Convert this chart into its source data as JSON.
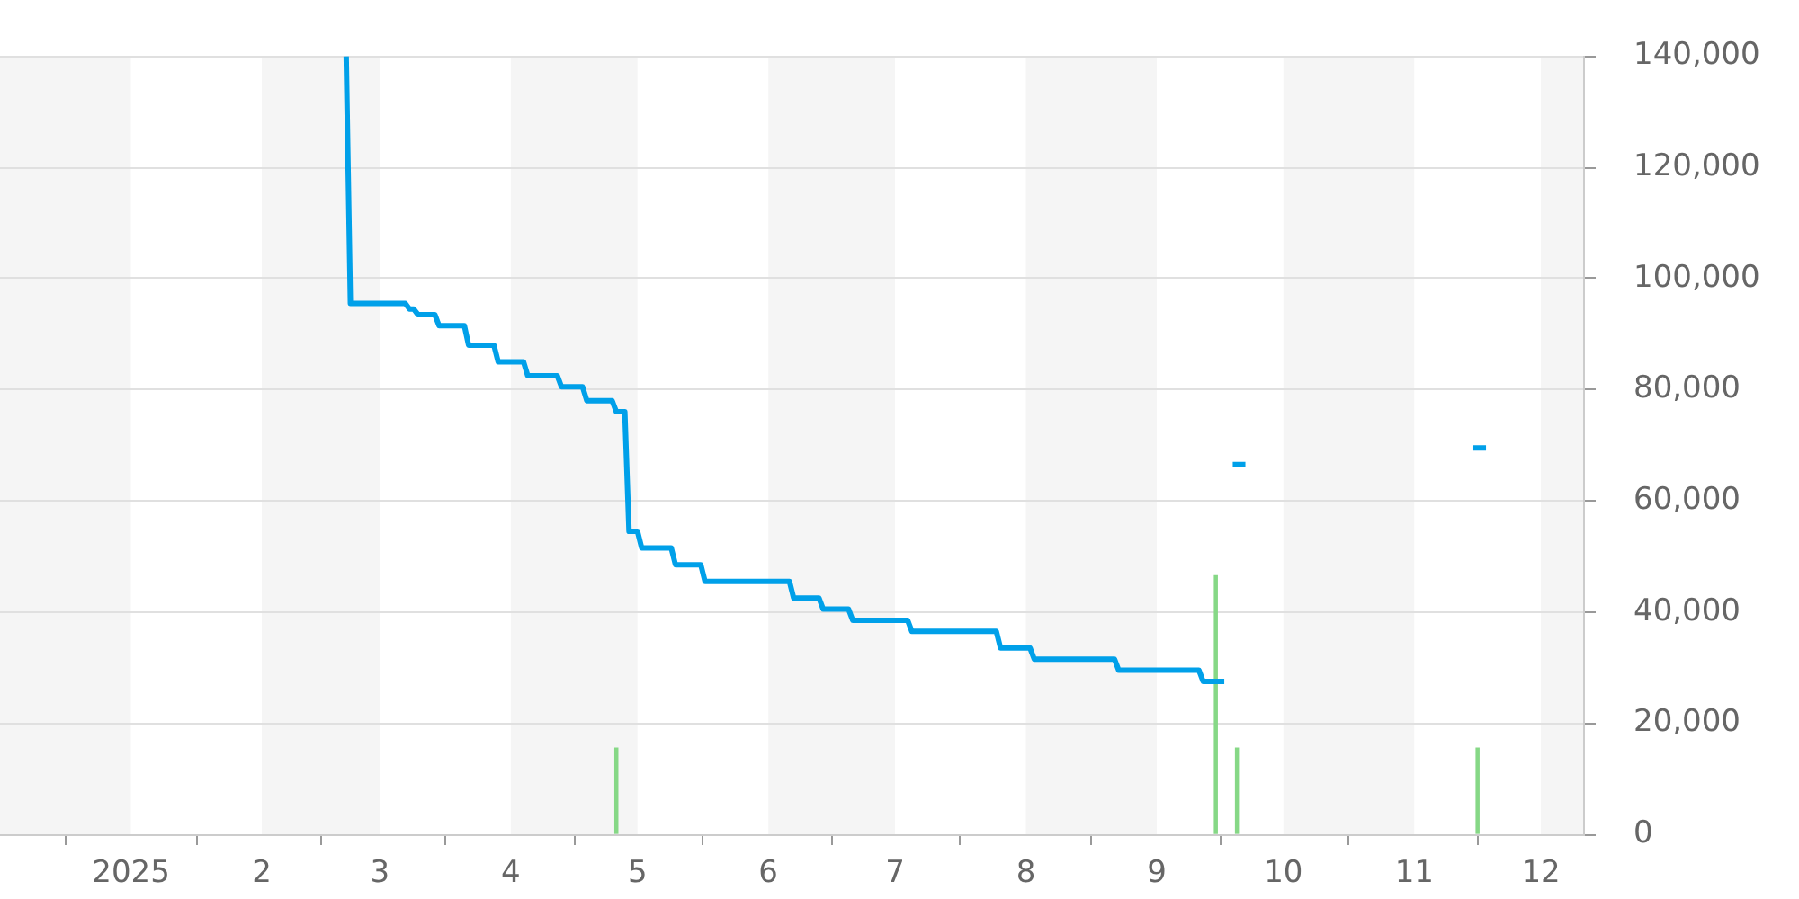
{
  "chart_data": {
    "type": "line",
    "series": [
      {
        "color": "#00a0e9",
        "x": [
          "2025-02-21",
          "2025-02-22",
          "2025-03-07",
          "2025-03-08",
          "2025-03-09",
          "2025-03-10",
          "2025-03-14",
          "2025-03-15",
          "2025-03-21",
          "2025-03-22",
          "2025-03-28",
          "2025-03-29",
          "2025-04-04",
          "2025-04-05",
          "2025-04-12",
          "2025-04-13",
          "2025-04-18",
          "2025-04-19",
          "2025-04-25",
          "2025-04-26",
          "2025-04-28",
          "2025-04-29",
          "2025-05-01",
          "2025-05-02",
          "2025-05-09",
          "2025-05-10",
          "2025-05-16",
          "2025-05-17",
          "2025-06-06",
          "2025-06-07",
          "2025-06-13",
          "2025-06-14",
          "2025-06-20",
          "2025-06-21",
          "2025-07-04",
          "2025-07-05",
          "2025-07-25",
          "2025-07-26",
          "2025-08-02",
          "2025-08-03",
          "2025-08-22",
          "2025-08-23",
          "2025-09-11",
          "2025-09-12",
          "2025-09-17",
          "2025-09-18",
          "2025-09-19",
          "2025-09-22",
          "2025-09-23",
          "2025-11-15",
          "2025-11-18"
        ],
        "values": [
          140000,
          95500,
          95500,
          94500,
          94500,
          93500,
          93500,
          91500,
          91500,
          88000,
          88000,
          85000,
          85000,
          82500,
          82500,
          80500,
          80500,
          78000,
          78000,
          76000,
          76000,
          54500,
          54500,
          51500,
          51500,
          48500,
          48500,
          45500,
          45500,
          42500,
          42500,
          40500,
          40500,
          38500,
          38500,
          36500,
          36500,
          33500,
          33500,
          31500,
          31500,
          29500,
          29500,
          27500,
          27500,
          null,
          66500,
          66500,
          null,
          69500,
          69500
        ]
      },
      {
        "type": "bar",
        "color": "#86d886",
        "x": [
          "2025-04-26",
          "2025-09-15",
          "2025-09-20",
          "2025-11-16"
        ],
        "values": [
          15500,
          46500,
          15500,
          15500
        ]
      }
    ],
    "xlim": [
      "2024-12-01",
      "2025-12-11"
    ],
    "xticks": [
      {
        "value": "2025-01-01",
        "label": "2025"
      },
      {
        "value": "2025-02-01",
        "label": "2"
      },
      {
        "value": "2025-03-01",
        "label": "3"
      },
      {
        "value": "2025-04-01",
        "label": "4"
      },
      {
        "value": "2025-05-01",
        "label": "5"
      },
      {
        "value": "2025-06-01",
        "label": "6"
      },
      {
        "value": "2025-07-01",
        "label": "7"
      },
      {
        "value": "2025-08-01",
        "label": "8"
      },
      {
        "value": "2025-09-01",
        "label": "9"
      },
      {
        "value": "2025-10-01",
        "label": "10"
      },
      {
        "value": "2025-11-01",
        "label": "11"
      },
      {
        "value": "2025-12-01",
        "label": "12"
      }
    ],
    "ylim": [
      0,
      140000
    ],
    "yticks": [
      0,
      {
        "value": 20000,
        "label": "20,000"
      },
      {
        "value": 40000,
        "label": "40,000"
      },
      {
        "value": 60000,
        "label": "60,000"
      },
      {
        "value": 80000,
        "label": "80,000"
      },
      {
        "value": 100000,
        "label": "100,000"
      },
      {
        "value": 120000,
        "label": "120,000"
      },
      {
        "value": 140000,
        "label": "140,000"
      }
    ],
    "grid": "y",
    "bands": [
      {
        "axis": "x",
        "from": "2024-12-01",
        "to": "2025-01-01",
        "color": "#f5f5f5"
      },
      {
        "axis": "x",
        "from": "2025-02-01",
        "to": "2025-03-01",
        "color": "#f5f5f5"
      },
      {
        "axis": "x",
        "from": "2025-04-01",
        "to": "2025-05-01",
        "color": "#f5f5f5"
      },
      {
        "axis": "x",
        "from": "2025-06-01",
        "to": "2025-07-01",
        "color": "#f5f5f5"
      },
      {
        "axis": "x",
        "from": "2025-08-01",
        "to": "2025-09-01",
        "color": "#f5f5f5"
      },
      {
        "axis": "x",
        "from": "2025-10-01",
        "to": "2025-11-01",
        "color": "#f5f5f5"
      },
      {
        "axis": "x",
        "from": "2025-12-01",
        "to": "2025-12-11",
        "color": "#f5f5f5"
      }
    ]
  }
}
